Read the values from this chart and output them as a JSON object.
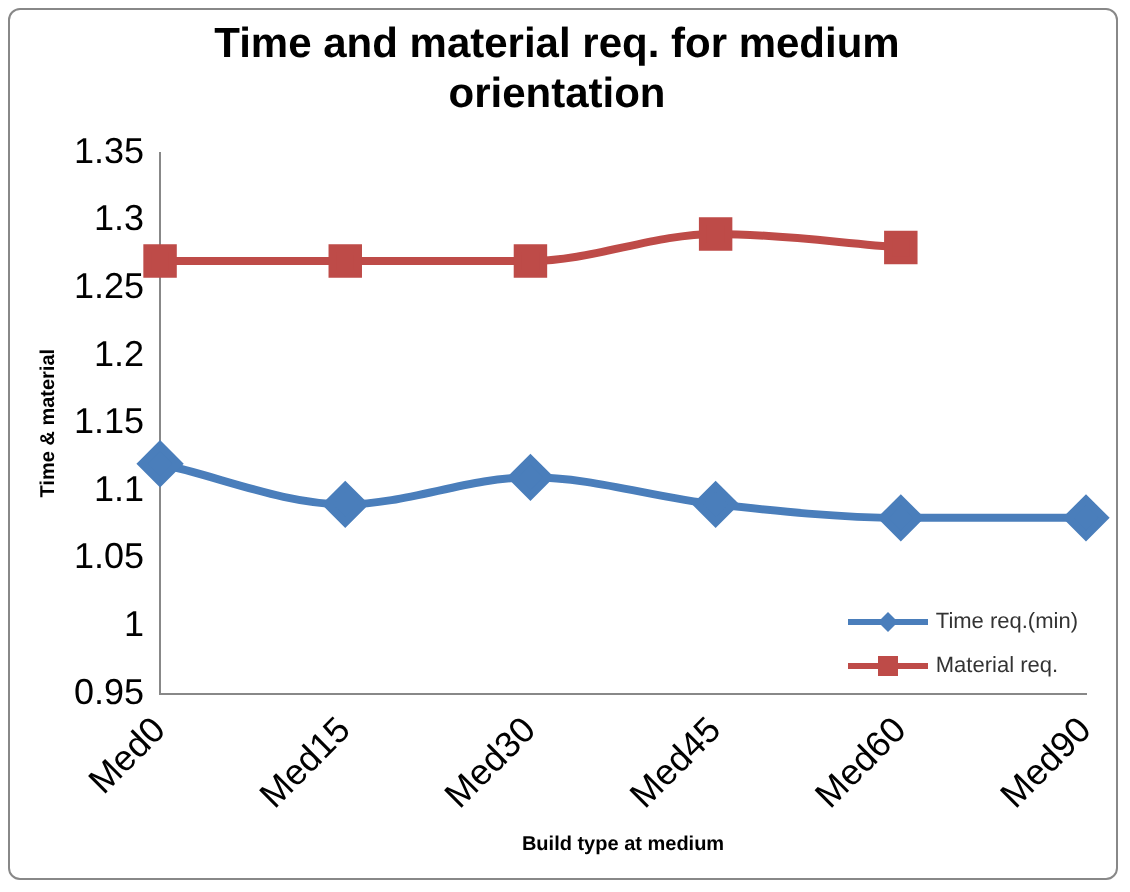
{
  "chart_data": {
    "type": "line",
    "title": "Time and material req. for medium orientation",
    "xlabel": "Build type at medium",
    "ylabel": "Time & material",
    "categories": [
      "Med0",
      "Med15",
      "Med30",
      "Med45",
      "Med60",
      "Med90"
    ],
    "series": [
      {
        "name": "Time req.(min)",
        "color": "#4a7ebb",
        "marker": "diamond",
        "values": [
          1.12,
          1.09,
          1.11,
          1.09,
          1.08,
          1.08
        ]
      },
      {
        "name": "Material req.",
        "color": "#be4b48",
        "marker": "square",
        "values": [
          1.27,
          1.27,
          1.27,
          1.29,
          1.28,
          null
        ]
      }
    ],
    "ylim": [
      0.95,
      1.35
    ],
    "yticks": [
      0.95,
      1,
      1.05,
      1.1,
      1.15,
      1.2,
      1.25,
      1.3,
      1.35
    ],
    "grid": false,
    "legend": "bottom right"
  }
}
